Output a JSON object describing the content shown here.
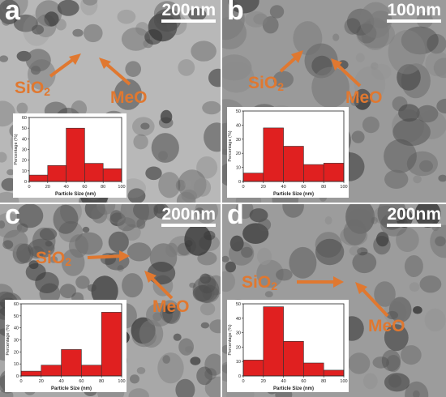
{
  "panels": [
    {
      "label": "a",
      "scale": "200nm",
      "tone": "#b8b8b8",
      "ann_sio2": "SiO",
      "ann_sio2_sub": "2",
      "ann_meo": "MeO",
      "ann_color": "#e07830",
      "chart_data": {
        "type": "bar",
        "categories": [
          "0-20",
          "20-40",
          "40-60",
          "60-80",
          "80-100"
        ],
        "values": [
          6,
          15,
          50,
          17,
          12
        ],
        "xlabel": "Particle Size (nm)",
        "ylabel": "Percentage (%)",
        "xlim": [
          0,
          100
        ],
        "ylim": [
          0,
          60
        ],
        "xticks": [
          "0",
          "20",
          "40",
          "60",
          "80",
          "100"
        ],
        "yticks": [
          "0",
          "10",
          "20",
          "30",
          "40",
          "50",
          "60"
        ],
        "bar_color": "#e02020"
      }
    },
    {
      "label": "b",
      "scale": "100nm",
      "tone": "#9a9a9a",
      "ann_sio2": "SiO",
      "ann_sio2_sub": "2",
      "ann_meo": "MeO",
      "ann_color": "#e07830",
      "chart_data": {
        "type": "bar",
        "categories": [
          "0-20",
          "20-40",
          "40-60",
          "60-80",
          "80-100"
        ],
        "values": [
          6,
          38,
          25,
          12,
          13
        ],
        "xlabel": "Particle Size (nm)",
        "ylabel": "Percentage (%)",
        "xlim": [
          0,
          100
        ],
        "ylim": [
          0,
          50
        ],
        "xticks": [
          "0",
          "20",
          "40",
          "60",
          "80",
          "100"
        ],
        "yticks": [
          "0",
          "10",
          "20",
          "30",
          "40",
          "50"
        ],
        "bar_color": "#e02020"
      }
    },
    {
      "label": "c",
      "scale": "200nm",
      "tone": "#a8a8a8",
      "ann_sio2": "SiO",
      "ann_sio2_sub": "2",
      "ann_meo": "MeO",
      "ann_color": "#e07830",
      "chart_data": {
        "type": "bar",
        "categories": [
          "0-20",
          "20-40",
          "40-60",
          "60-80",
          "80-100"
        ],
        "values": [
          4,
          9,
          22,
          9,
          53
        ],
        "xlabel": "Particle Size (nm)",
        "ylabel": "Percentage (%)",
        "xlim": [
          0,
          100
        ],
        "ylim": [
          0,
          60
        ],
        "xticks": [
          "0",
          "20",
          "40",
          "60",
          "80",
          "100"
        ],
        "yticks": [
          "0",
          "10",
          "20",
          "30",
          "40",
          "50",
          "60"
        ],
        "bar_color": "#e02020"
      }
    },
    {
      "label": "d",
      "scale": "200nm",
      "tone": "#9c9c9c",
      "ann_sio2": "SiO",
      "ann_sio2_sub": "2",
      "ann_meo": "MeO",
      "ann_color": "#e07830",
      "chart_data": {
        "type": "bar",
        "categories": [
          "0-20",
          "20-40",
          "40-60",
          "60-80",
          "80-100"
        ],
        "values": [
          11,
          48,
          24,
          9,
          4
        ],
        "xlabel": "Particle Size (nm)",
        "ylabel": "Percentage (%)",
        "xlim": [
          0,
          100
        ],
        "ylim": [
          0,
          50
        ],
        "xticks": [
          "0",
          "20",
          "40",
          "60",
          "80",
          "100"
        ],
        "yticks": [
          "0",
          "10",
          "20",
          "30",
          "40",
          "50"
        ],
        "bar_color": "#e02020"
      }
    }
  ]
}
